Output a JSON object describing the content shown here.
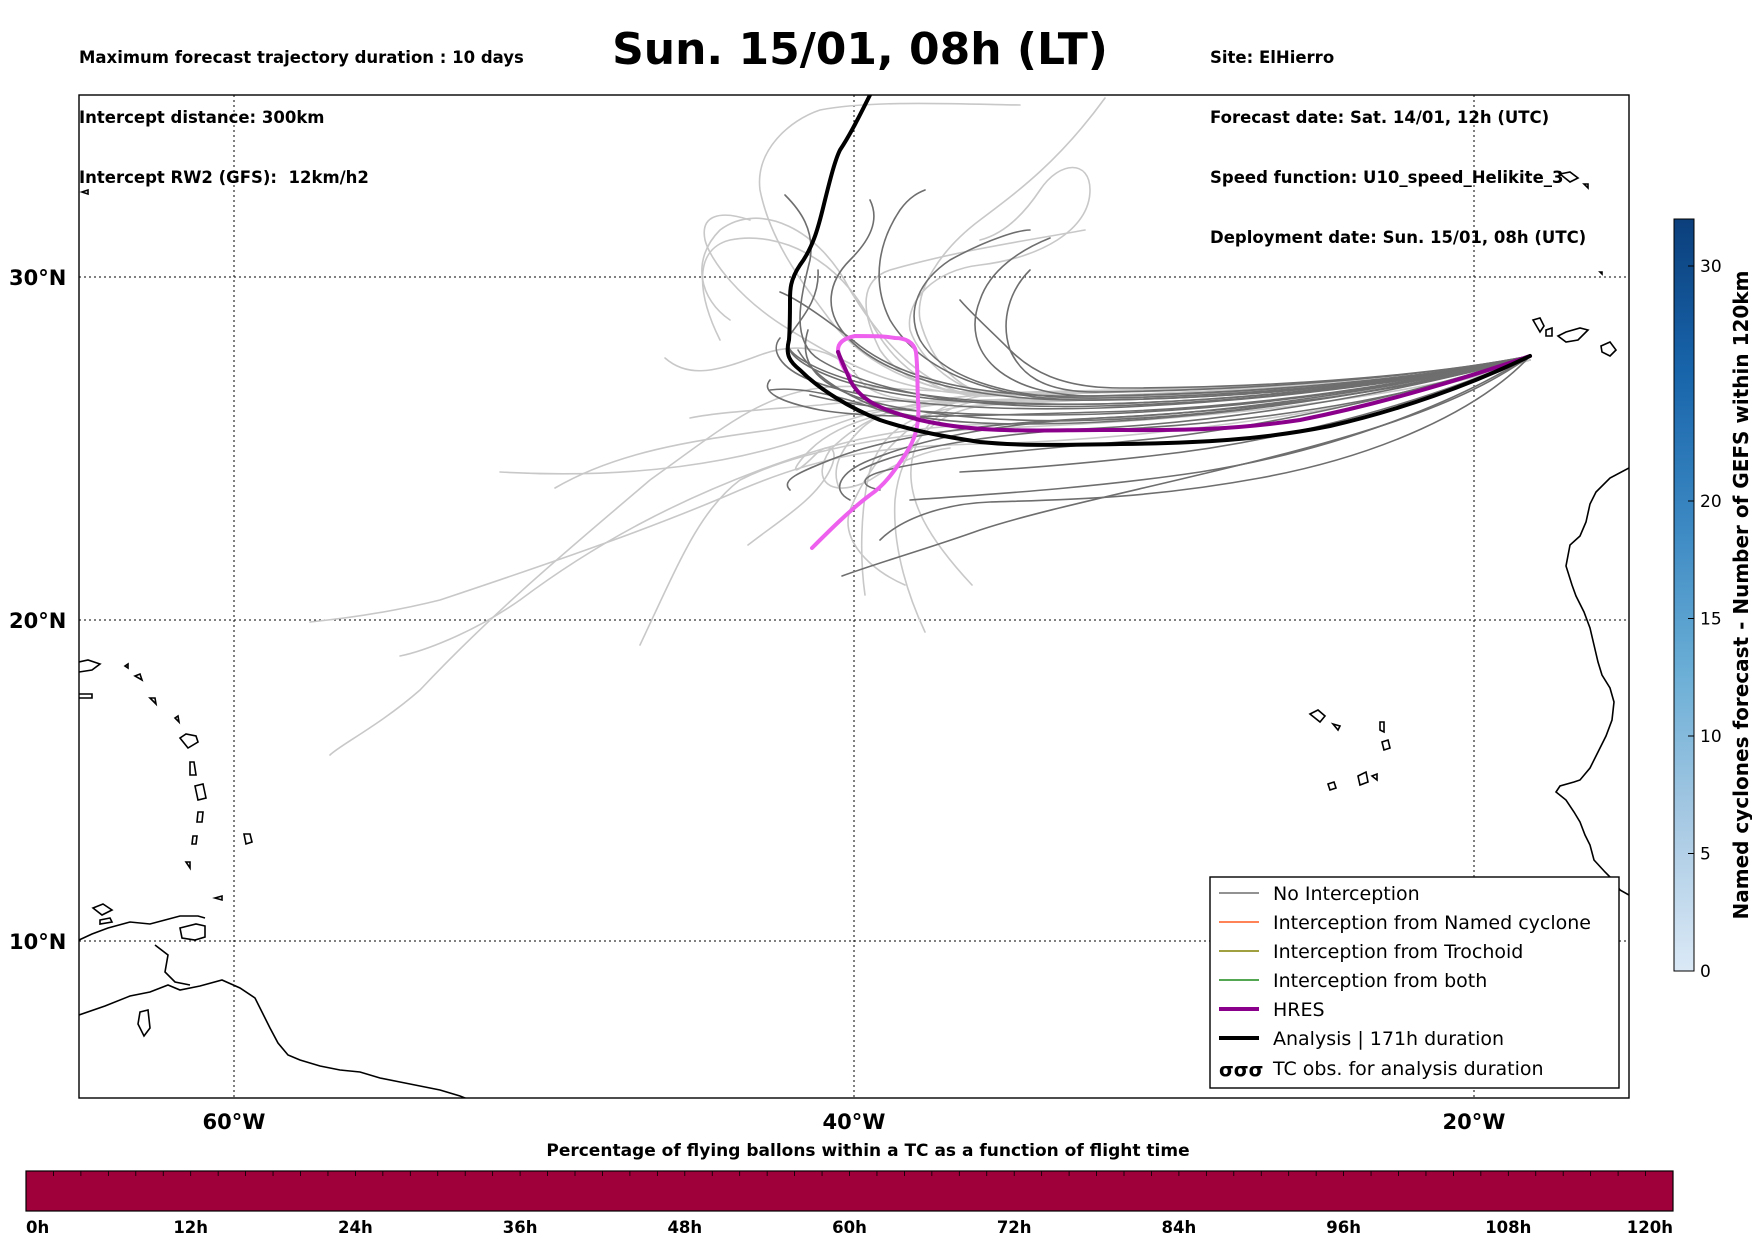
{
  "header": {
    "left_lines": [
      "Maximum forecast trajectory duration : 10 days",
      "Intercept distance: 300km",
      "Intercept RW2 (GFS):  12km/h2"
    ],
    "title": "Sun. 15/01, 08h (LT)",
    "right_lines": [
      "Site: ElHierro",
      "Forecast date: Sat. 14/01, 12h (UTC)",
      "Speed function: U10_speed_Helikite_3",
      "Deployment date: Sun. 15/01, 08h (UTC)"
    ]
  },
  "map": {
    "lon_range": [
      -65,
      15
    ],
    "lat_range": [
      5,
      35
    ],
    "lat_labels": [
      "30°N",
      "20°N",
      "10°N"
    ],
    "lon_labels": [
      "60°W",
      "40°W",
      "20°W"
    ],
    "gridlines": true,
    "colors": {
      "no_interception": "#6e6e6e",
      "faint_tracks": "#c8c8c8",
      "named_cyclone": "#ff5a1f",
      "trochoid": "#808000",
      "both": "#1a8a1a",
      "hres": "#8b008b",
      "hres_early": "#ee60ee",
      "analysis": "#000000",
      "coast": "#000000"
    }
  },
  "legend": {
    "position": "bottom-right",
    "items": [
      {
        "label": "No Interception",
        "color": "#6e6e6e",
        "style": "thin"
      },
      {
        "label": "Interception from Named cyclone",
        "color": "#ff5a1f",
        "style": "thin"
      },
      {
        "label": "Interception from Trochoid",
        "color": "#808000",
        "style": "thin"
      },
      {
        "label": "Interception from both",
        "color": "#1a8a1a",
        "style": "thin"
      },
      {
        "label": "HRES",
        "color": "#8b008b",
        "style": "thick"
      },
      {
        "label": "Analysis | 171h duration",
        "color": "#000000",
        "style": "thick"
      },
      {
        "label": "TC obs. for analysis duration",
        "color": "#000000",
        "style": "symbols",
        "symbol": "σσσ"
      }
    ]
  },
  "colorbar": {
    "title": "Named cyclones forecast - Number of GEFS within 120km",
    "min": 0,
    "max": 32,
    "ticks": [
      {
        "value": 0,
        "label": "0"
      },
      {
        "value": 5,
        "label": "5"
      },
      {
        "value": 10,
        "label": "10"
      },
      {
        "value": 15,
        "label": "15"
      },
      {
        "value": 20,
        "label": "20"
      },
      {
        "value": 30,
        "label": "30"
      }
    ],
    "gradient": [
      "#dbe9f6",
      "#a7c9e3",
      "#6aaed6",
      "#3a87c2",
      "#1864aa",
      "#0b3f7c"
    ]
  },
  "bottom_bar": {
    "title": "Percentage of flying ballons within a TC as a function of flight time",
    "fill_color": "#a0003a",
    "ticks": [
      "0h",
      "12h",
      "24h",
      "36h",
      "48h",
      "60h",
      "72h",
      "84h",
      "96h",
      "108h",
      "120h"
    ]
  }
}
